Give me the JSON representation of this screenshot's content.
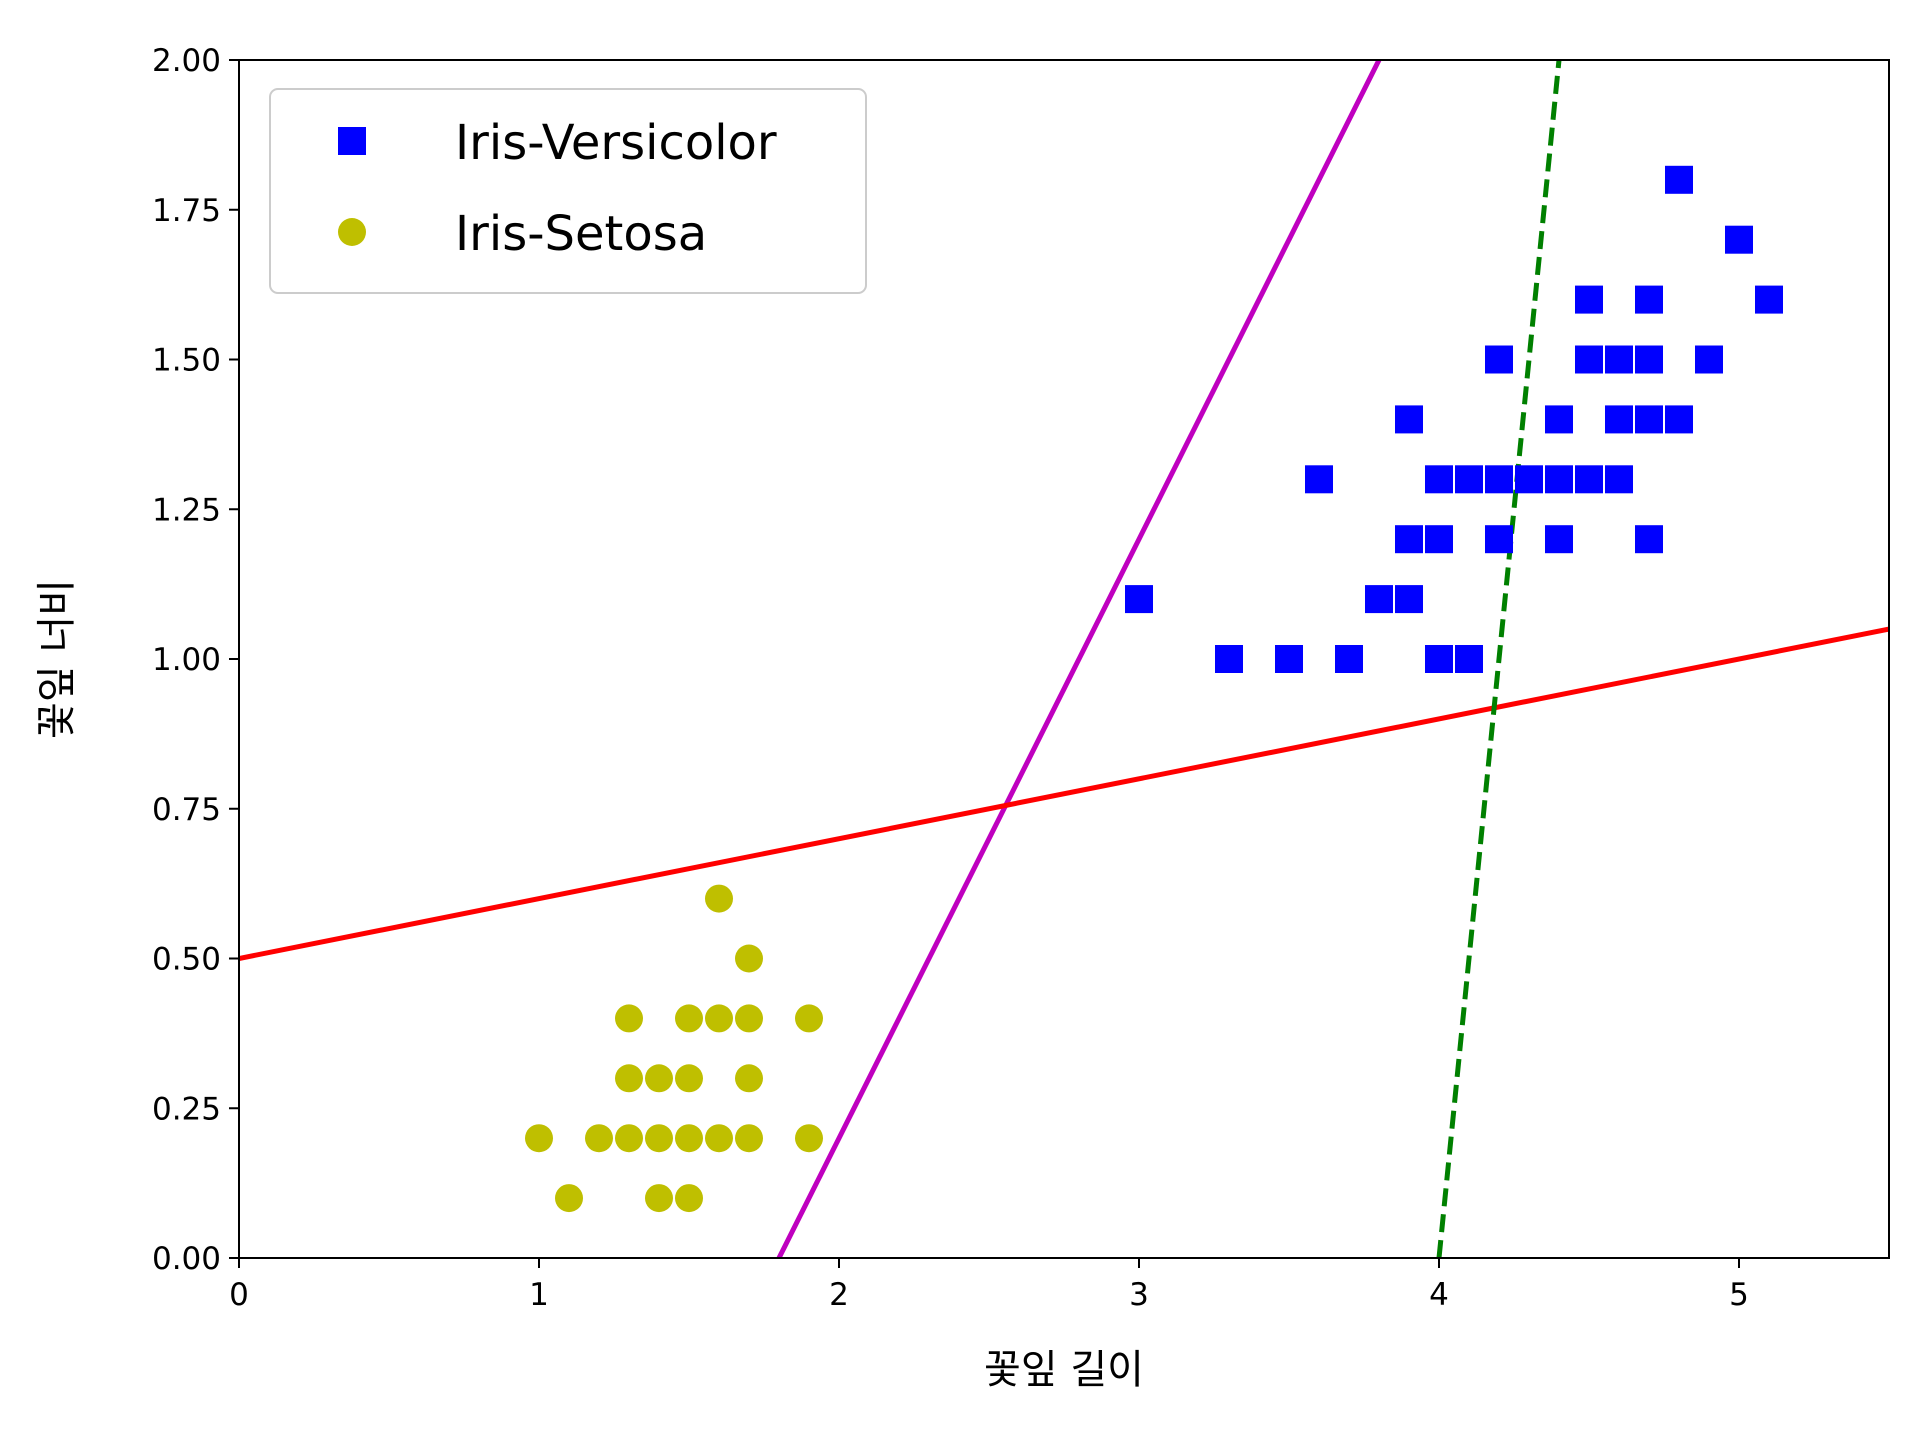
{
  "chart_data": {
    "type": "scatter",
    "xlabel": "꽃잎 길이",
    "ylabel": "꽃잎 너비",
    "xlim": [
      0,
      5.5
    ],
    "ylim": [
      0,
      2
    ],
    "x_ticks": [
      "0",
      "1",
      "2",
      "3",
      "4",
      "5"
    ],
    "y_ticks": [
      "0.00",
      "0.25",
      "0.50",
      "0.75",
      "1.00",
      "1.25",
      "1.50",
      "1.75",
      "2.00"
    ],
    "grid": false,
    "legend_position": "top-left",
    "series": [
      {
        "name": "Iris-Versicolor",
        "marker": "square",
        "color": "#0000ff",
        "points": [
          [
            3.0,
            1.1
          ],
          [
            3.3,
            1.0
          ],
          [
            3.5,
            1.0
          ],
          [
            3.7,
            1.0
          ],
          [
            3.6,
            1.3
          ],
          [
            3.8,
            1.1
          ],
          [
            3.9,
            1.1
          ],
          [
            3.9,
            1.2
          ],
          [
            3.9,
            1.4
          ],
          [
            4.0,
            1.0
          ],
          [
            4.1,
            1.0
          ],
          [
            4.0,
            1.2
          ],
          [
            4.0,
            1.3
          ],
          [
            4.1,
            1.3
          ],
          [
            4.2,
            1.2
          ],
          [
            4.2,
            1.3
          ],
          [
            4.2,
            1.5
          ],
          [
            4.3,
            1.3
          ],
          [
            4.4,
            1.2
          ],
          [
            4.4,
            1.3
          ],
          [
            4.4,
            1.4
          ],
          [
            4.5,
            1.3
          ],
          [
            4.5,
            1.5
          ],
          [
            4.5,
            1.6
          ],
          [
            4.6,
            1.3
          ],
          [
            4.6,
            1.4
          ],
          [
            4.6,
            1.5
          ],
          [
            4.7,
            1.2
          ],
          [
            4.7,
            1.4
          ],
          [
            4.7,
            1.5
          ],
          [
            4.7,
            1.6
          ],
          [
            4.8,
            1.4
          ],
          [
            4.8,
            1.8
          ],
          [
            4.9,
            1.5
          ],
          [
            5.0,
            1.7
          ],
          [
            5.1,
            1.6
          ]
        ]
      },
      {
        "name": "Iris-Setosa",
        "marker": "circle",
        "color": "#bfbf00",
        "points": [
          [
            1.0,
            0.2
          ],
          [
            1.1,
            0.1
          ],
          [
            1.2,
            0.2
          ],
          [
            1.3,
            0.2
          ],
          [
            1.3,
            0.3
          ],
          [
            1.3,
            0.4
          ],
          [
            1.4,
            0.1
          ],
          [
            1.4,
            0.2
          ],
          [
            1.4,
            0.3
          ],
          [
            1.5,
            0.1
          ],
          [
            1.5,
            0.2
          ],
          [
            1.5,
            0.3
          ],
          [
            1.5,
            0.4
          ],
          [
            1.6,
            0.2
          ],
          [
            1.6,
            0.4
          ],
          [
            1.6,
            0.6
          ],
          [
            1.7,
            0.2
          ],
          [
            1.7,
            0.3
          ],
          [
            1.7,
            0.4
          ],
          [
            1.7,
            0.5
          ],
          [
            1.9,
            0.2
          ],
          [
            1.9,
            0.4
          ]
        ]
      }
    ],
    "lines": [
      {
        "color": "#bf00bf",
        "style": "solid",
        "points": [
          [
            1.8,
            0.0
          ],
          [
            3.8,
            2.0
          ]
        ]
      },
      {
        "color": "#ff0000",
        "style": "solid",
        "points": [
          [
            0.0,
            0.5
          ],
          [
            5.5,
            1.05
          ]
        ]
      },
      {
        "color": "#008000",
        "style": "dashed",
        "points": [
          [
            4.0,
            0.0
          ],
          [
            4.4,
            2.0
          ]
        ]
      }
    ]
  }
}
